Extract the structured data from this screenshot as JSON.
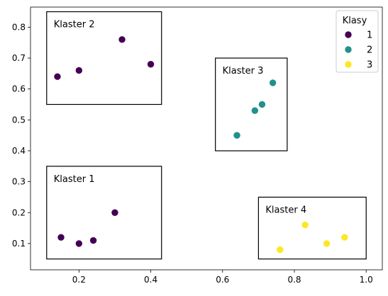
{
  "chart_data": {
    "type": "scatter",
    "title": "",
    "xlabel": "",
    "ylabel": "",
    "xlim": [
      0.065,
      1.045
    ],
    "ylim": [
      0.015,
      0.865
    ],
    "grid": false,
    "x_ticks": [
      {
        "value": 0.2,
        "label": "0.2"
      },
      {
        "value": 0.4,
        "label": "0.4"
      },
      {
        "value": 0.6,
        "label": "0.6"
      },
      {
        "value": 0.8,
        "label": "0.8"
      },
      {
        "value": 1.0,
        "label": "1.0"
      }
    ],
    "y_ticks": [
      {
        "value": 0.1,
        "label": "0.1"
      },
      {
        "value": 0.2,
        "label": "0.2"
      },
      {
        "value": 0.3,
        "label": "0.3"
      },
      {
        "value": 0.4,
        "label": "0.4"
      },
      {
        "value": 0.5,
        "label": "0.5"
      },
      {
        "value": 0.6,
        "label": "0.6"
      },
      {
        "value": 0.7,
        "label": "0.7"
      },
      {
        "value": 0.8,
        "label": "0.8"
      }
    ],
    "legend": {
      "title": "Klasy",
      "position": "top-right",
      "entries": [
        {
          "label": "1",
          "color": "#440154"
        },
        {
          "label": "2",
          "color": "#21918c"
        },
        {
          "label": "3",
          "color": "#fde725"
        }
      ]
    },
    "series": [
      {
        "name": "1",
        "color": "#440154",
        "points": [
          {
            "x": 0.14,
            "y": 0.64
          },
          {
            "x": 0.2,
            "y": 0.66
          },
          {
            "x": 0.32,
            "y": 0.76
          },
          {
            "x": 0.4,
            "y": 0.68
          },
          {
            "x": 0.15,
            "y": 0.12
          },
          {
            "x": 0.2,
            "y": 0.1
          },
          {
            "x": 0.24,
            "y": 0.11
          },
          {
            "x": 0.3,
            "y": 0.2
          }
        ]
      },
      {
        "name": "2",
        "color": "#21918c",
        "points": [
          {
            "x": 0.64,
            "y": 0.45
          },
          {
            "x": 0.69,
            "y": 0.53
          },
          {
            "x": 0.71,
            "y": 0.55
          },
          {
            "x": 0.74,
            "y": 0.62
          }
        ]
      },
      {
        "name": "3",
        "color": "#fde725",
        "points": [
          {
            "x": 0.76,
            "y": 0.08
          },
          {
            "x": 0.83,
            "y": 0.16
          },
          {
            "x": 0.89,
            "y": 0.1
          },
          {
            "x": 0.94,
            "y": 0.12
          }
        ]
      }
    ],
    "annotations": [
      {
        "label": "Klaster 1",
        "x0": 0.11,
        "x1": 0.43,
        "y0": 0.05,
        "y1": 0.35
      },
      {
        "label": "Klaster 2",
        "x0": 0.11,
        "x1": 0.43,
        "y0": 0.55,
        "y1": 0.85
      },
      {
        "label": "Klaster 3",
        "x0": 0.58,
        "x1": 0.78,
        "y0": 0.4,
        "y1": 0.7
      },
      {
        "label": "Klaster 4",
        "x0": 0.7,
        "x1": 1.0,
        "y0": 0.05,
        "y1": 0.25
      }
    ]
  }
}
